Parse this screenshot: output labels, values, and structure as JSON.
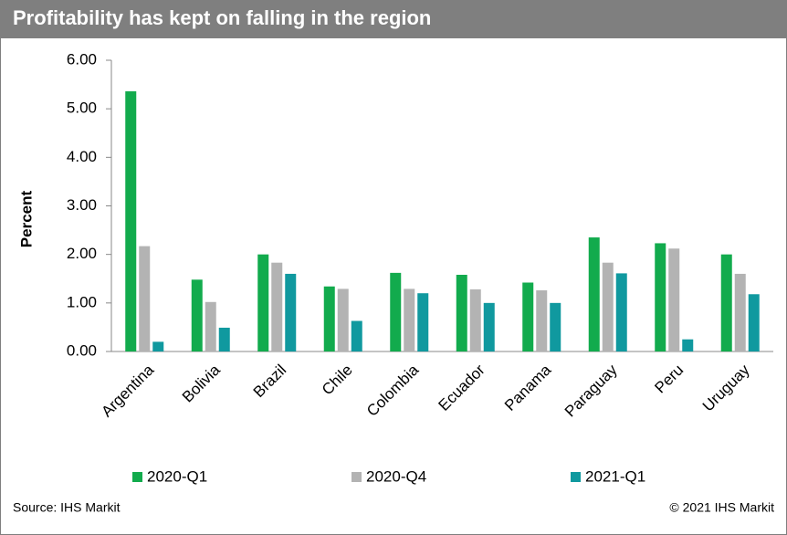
{
  "chart_data": {
    "type": "bar",
    "title": "Profitability has kept on falling in the region",
    "y_label": "Percent",
    "categories": [
      "Argentina",
      "Bolivia",
      "Brazil",
      "Chile",
      "Colombia",
      "Ecuador",
      "Panama",
      "Paraguay",
      "Peru",
      "Uruguay"
    ],
    "series": [
      {
        "name": "2020-Q1",
        "color": "#12ab4d",
        "values": [
          5.36,
          1.48,
          2.0,
          1.34,
          1.62,
          1.58,
          1.42,
          2.35,
          2.23,
          2.0
        ]
      },
      {
        "name": "2020-Q4",
        "color": "#b3b3b3",
        "values": [
          2.17,
          1.02,
          1.83,
          1.29,
          1.29,
          1.28,
          1.26,
          1.83,
          2.12,
          1.6
        ]
      },
      {
        "name": "2021-Q1",
        "color": "#10999f",
        "values": [
          0.2,
          0.49,
          1.6,
          0.63,
          1.2,
          1.0,
          1.0,
          1.61,
          0.25,
          1.18
        ]
      }
    ],
    "ylim": [
      0,
      6
    ],
    "yticks": [
      {
        "value": 0,
        "label": "0.00"
      },
      {
        "value": 1,
        "label": "1.00"
      },
      {
        "value": 2,
        "label": "2.00"
      },
      {
        "value": 3,
        "label": "3.00"
      },
      {
        "value": 4,
        "label": "4.00"
      },
      {
        "value": 5,
        "label": "5.00"
      },
      {
        "value": 6,
        "label": "6.00"
      }
    ],
    "grid": false,
    "source": "Source: IHS Markit",
    "copyright": "© 2021 IHS Markit"
  }
}
